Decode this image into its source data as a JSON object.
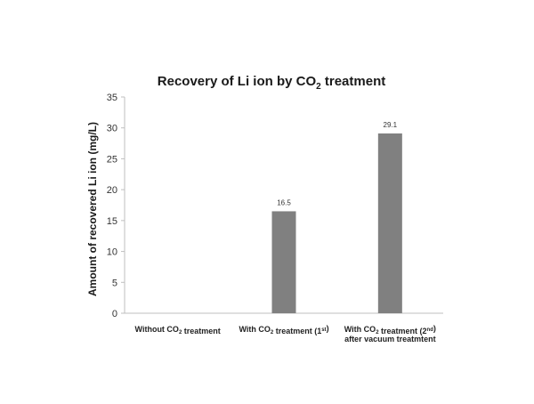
{
  "chart_data": {
    "type": "bar",
    "title": {
      "text_before_sub": "Recovery of Li ion by CO",
      "text_sub": "2",
      "text_after_sub": " treatment"
    },
    "xlabel": "",
    "ylabel": "Amount of recovered Li ion (mg/L)",
    "ylim": [
      0,
      35
    ],
    "yticks": [
      0,
      5,
      10,
      15,
      20,
      25,
      30,
      35
    ],
    "grid": false,
    "legend": "none",
    "bar_color": "#808080",
    "axis_color": "#bfbfbf",
    "categories": [
      {
        "lines": [
          [
            {
              "text": "Without CO",
              "sub": false
            },
            {
              "text": "2",
              "sub": true
            },
            {
              "text": " treatment",
              "sub": false
            }
          ]
        ]
      },
      {
        "lines": [
          [
            {
              "text": "With CO",
              "sub": false
            },
            {
              "text": "2",
              "sub": true
            },
            {
              "text": " treatment (1",
              "sub": false
            },
            {
              "text": "st",
              "sub": "sup"
            },
            {
              "text": ")",
              "sub": false
            }
          ]
        ]
      },
      {
        "lines": [
          [
            {
              "text": "With CO",
              "sub": false
            },
            {
              "text": "2",
              "sub": true
            },
            {
              "text": " treatment (2",
              "sub": false
            },
            {
              "text": "nd",
              "sub": "sup"
            },
            {
              "text": ")",
              "sub": false
            }
          ],
          [
            {
              "text": "after vacuum treatmtent",
              "sub": false
            }
          ]
        ]
      }
    ],
    "values": [
      0,
      16.5,
      29.1
    ],
    "data_labels": [
      "",
      "16.5",
      "29.1"
    ]
  }
}
